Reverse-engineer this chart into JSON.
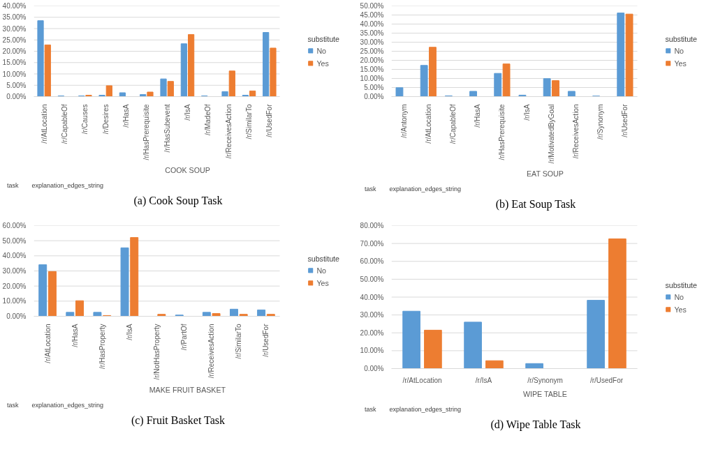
{
  "chart_data": [
    {
      "type": "bar",
      "title": "(a) Cook Soup Task",
      "xlabel": "COOK SOUP",
      "legend_title": "substitute",
      "legend": "right",
      "grid": "y",
      "annotations": [
        "task",
        "explanation_edges_string"
      ],
      "categories": [
        "/r/AtLocation",
        "/r/CapableOf",
        "/r/Causes",
        "/r/Desires",
        "/r/HasA",
        "/r/HasPrerequisite",
        "/r/HasSubevent",
        "/r/IsA",
        "/r/MadeOf",
        "/r/ReceivesAction",
        "/r/SimilarTo",
        "/r/UsedFor"
      ],
      "ylim": [
        0,
        40
      ],
      "yticks": [
        {
          "value": 0,
          "label": "0.00%"
        },
        {
          "value": 5,
          "label": "5.00%"
        },
        {
          "value": 10,
          "label": "10.00%"
        },
        {
          "value": 15,
          "label": "15.00%"
        },
        {
          "value": 20,
          "label": "20.00%"
        },
        {
          "value": 25,
          "label": "25.00%"
        },
        {
          "value": 30,
          "label": "30.00%"
        },
        {
          "value": 35,
          "label": "35.00%"
        },
        {
          "value": 40,
          "label": "40.00%"
        }
      ],
      "series": [
        {
          "name": "No",
          "color": "#5b9bd5",
          "values": [
            33.5,
            0.3,
            0.3,
            0.6,
            1.7,
            0.9,
            7.8,
            23.3,
            0.3,
            2.2,
            0.6,
            28.3
          ]
        },
        {
          "name": "Yes",
          "color": "#ed7d31",
          "values": [
            22.8,
            null,
            0.6,
            4.8,
            null,
            2.0,
            6.7,
            27.4,
            null,
            11.3,
            2.5,
            21.4
          ]
        }
      ]
    },
    {
      "type": "bar",
      "title": "(b) Eat Soup Task",
      "xlabel": "EAT SOUP",
      "legend_title": "substitute",
      "legend": "right",
      "grid": "y",
      "annotations": [
        "task",
        "explanation_edges_string"
      ],
      "categories": [
        "/r/Antonym",
        "/r/AtLocation",
        "/r/CapableOf",
        "/r/HasA",
        "/r/HasPrerequisite",
        "/r/IsA",
        "/r/MotivatedByGoal",
        "/r/ReceivesAction",
        "/r/Synonym",
        "/r/UsedFor"
      ],
      "ylim": [
        0,
        50
      ],
      "yticks": [
        {
          "value": 0,
          "label": "0.00%"
        },
        {
          "value": 5,
          "label": "5.00%"
        },
        {
          "value": 10,
          "label": "10.00%"
        },
        {
          "value": 15,
          "label": "15.00%"
        },
        {
          "value": 20,
          "label": "20.00%"
        },
        {
          "value": 25,
          "label": "25.00%"
        },
        {
          "value": 30,
          "label": "30.00%"
        },
        {
          "value": 35,
          "label": "35.00%"
        },
        {
          "value": 40,
          "label": "40.00%"
        },
        {
          "value": 45,
          "label": "45.00%"
        },
        {
          "value": 50,
          "label": "50.00%"
        }
      ],
      "series": [
        {
          "name": "No",
          "color": "#5b9bd5",
          "values": [
            4.9,
            17.2,
            0.4,
            2.9,
            12.8,
            0.8,
            9.9,
            2.9,
            0.3,
            46.1
          ]
        },
        {
          "name": "Yes",
          "color": "#ed7d31",
          "values": [
            null,
            27.2,
            null,
            null,
            18.0,
            null,
            8.8,
            null,
            null,
            45.5
          ]
        }
      ]
    },
    {
      "type": "bar",
      "title": "(c) Fruit Basket Task",
      "xlabel": "MAKE FRUIT BASKET",
      "legend_title": "substitute",
      "legend": "right",
      "grid": "y",
      "annotations": [
        "task",
        "explanation_edges_string"
      ],
      "categories": [
        "/r/AtLocation",
        "/r/HasA",
        "/r/HasProperty",
        "/r/IsA",
        "/r/NotHasProperty",
        "/r/PartOf",
        "/r/ReceivesAction",
        "/r/SimilarTo",
        "/r/UsedFor"
      ],
      "ylim": [
        0,
        60
      ],
      "yticks": [
        {
          "value": 0,
          "label": "0.00%"
        },
        {
          "value": 10,
          "label": "10.00%"
        },
        {
          "value": 20,
          "label": "20.00%"
        },
        {
          "value": 30,
          "label": "30.00%"
        },
        {
          "value": 40,
          "label": "40.00%"
        },
        {
          "value": 50,
          "label": "50.00%"
        },
        {
          "value": 60,
          "label": "60.00%"
        }
      ],
      "series": [
        {
          "name": "No",
          "color": "#5b9bd5",
          "values": [
            34.1,
            2.6,
            2.6,
            45.3,
            null,
            0.8,
            2.6,
            4.7,
            4.2
          ]
        },
        {
          "name": "Yes",
          "color": "#ed7d31",
          "values": [
            29.6,
            10.3,
            0.5,
            52.1,
            1.3,
            null,
            1.8,
            1.3,
            1.3
          ]
        }
      ]
    },
    {
      "type": "bar",
      "title": "(d) Wipe Table Task",
      "xlabel": "WIPE TABLE",
      "legend_title": "substitute",
      "legend": "right",
      "grid": "y",
      "annotations": [
        "task",
        "explanation_edges_string"
      ],
      "categories": [
        "/r/AtLocation",
        "/r/IsA",
        "/r/Synonym",
        "/r/UsedFor"
      ],
      "ylim": [
        0,
        80
      ],
      "yticks": [
        {
          "value": 0,
          "label": "0.00%"
        },
        {
          "value": 10,
          "label": "10.00%"
        },
        {
          "value": 20,
          "label": "20.00%"
        },
        {
          "value": 30,
          "label": "30.00%"
        },
        {
          "value": 40,
          "label": "40.00%"
        },
        {
          "value": 50,
          "label": "50.00%"
        },
        {
          "value": 60,
          "label": "60.00%"
        },
        {
          "value": 70,
          "label": "70.00%"
        },
        {
          "value": 80,
          "label": "80.00%"
        }
      ],
      "series": [
        {
          "name": "No",
          "color": "#5b9bd5",
          "values": [
            32.1,
            26.0,
            2.8,
            38.2
          ]
        },
        {
          "name": "Yes",
          "color": "#ed7d31",
          "values": [
            21.5,
            4.4,
            null,
            72.6
          ]
        }
      ]
    }
  ]
}
